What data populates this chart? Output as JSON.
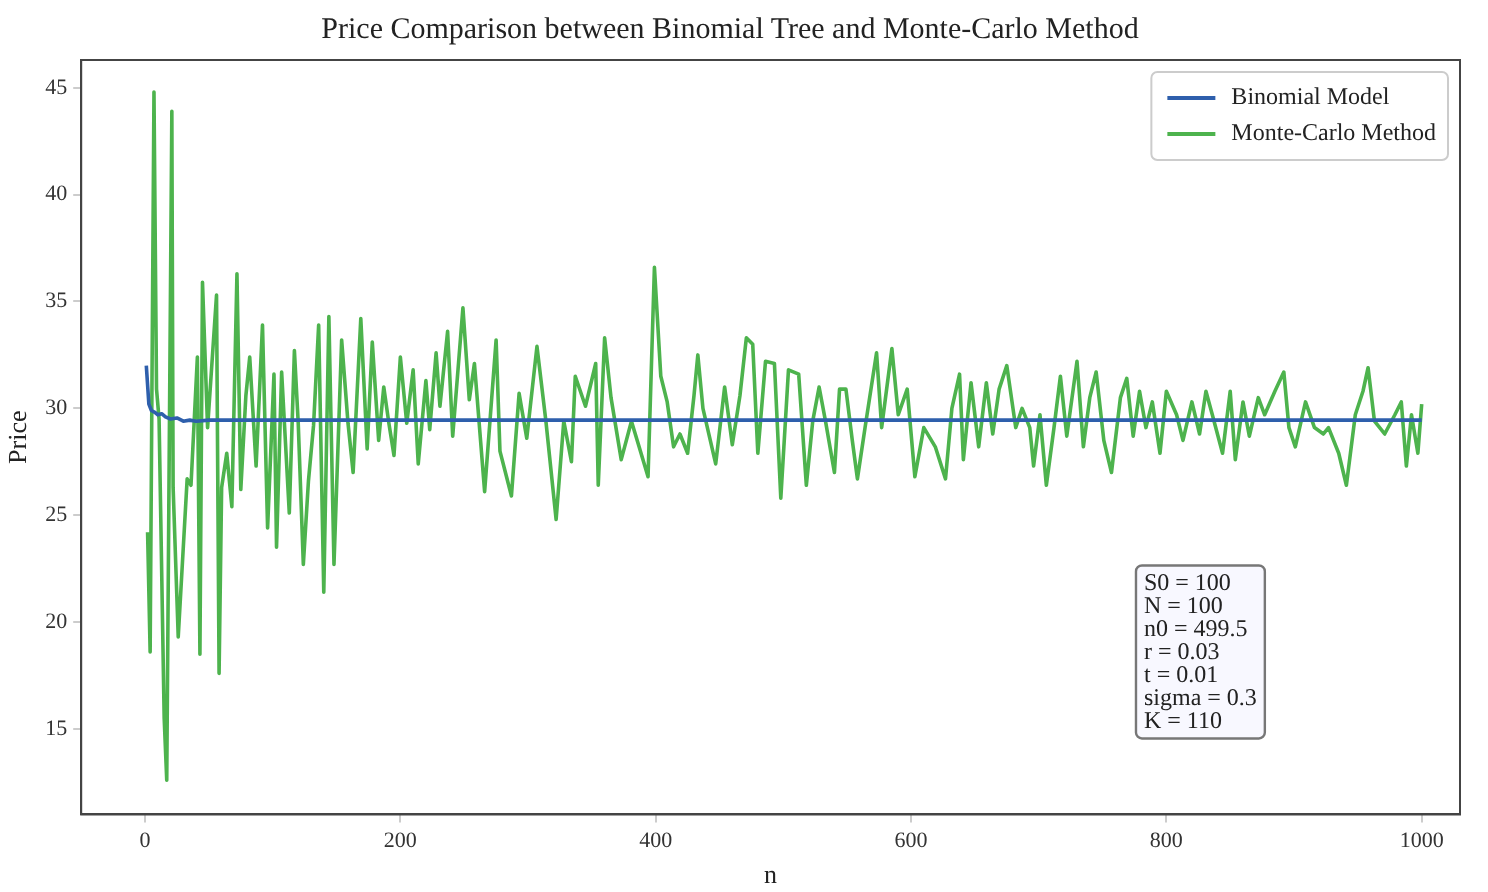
{
  "chart_data": {
    "type": "line",
    "title": "Price Comparison between Binomial Tree and Monte-Carlo Method",
    "xlabel": "n",
    "ylabel": "Price",
    "xlim": [
      -50,
      1030
    ],
    "xticks": [
      0,
      200,
      400,
      600,
      800,
      1000
    ],
    "ylim": [
      11,
      46.3
    ],
    "yticks": [
      15,
      20,
      25,
      30,
      35,
      40,
      45
    ],
    "grid": false,
    "legend": "top right",
    "marker": "none",
    "line_style": "solid",
    "annotations": [
      "S0 = 100\nN = 100\nn0 = 499.5\nr = 0.03\nt = 0.01\nsigma = 0.3\nK = 110"
    ],
    "series": [
      {
        "name": "Binomial Model",
        "color": "#2e5fac",
        "x": [
          1,
          3,
          5,
          8,
          10,
          13,
          16,
          20,
          25,
          30,
          35,
          40,
          50,
          100,
          1000
        ],
        "values": [
          32,
          30.2,
          29.9,
          29.8,
          29.7,
          29.75,
          29.6,
          29.5,
          29.55,
          29.4,
          29.45,
          29.4,
          29.45,
          29.45,
          29.45
        ]
      },
      {
        "name": "Monte-Carlo Method",
        "color": "#4db34d",
        "x": [
          2,
          4,
          7,
          9,
          11,
          15,
          17,
          21,
          22,
          26,
          33,
          36,
          41,
          43,
          45,
          49,
          56,
          58,
          60,
          64,
          68,
          72,
          75,
          79,
          82,
          87,
          92,
          96,
          101,
          103,
          107,
          113,
          117,
          120,
          124,
          128,
          132,
          136,
          140,
          144,
          148,
          154,
          159,
          163,
          169,
          174,
          178,
          183,
          187,
          191,
          195,
          200,
          205,
          210,
          214,
          220,
          223,
          228,
          231,
          237,
          241,
          249,
          254,
          258,
          266,
          275,
          278,
          287,
          293,
          299,
          307,
          314,
          322,
          328,
          334,
          337,
          345,
          353,
          355,
          360,
          365,
          373,
          381,
          387,
          394,
          399,
          404,
          409,
          414,
          419,
          425,
          430,
          433,
          437,
          447,
          454,
          460,
          466,
          471,
          476,
          480,
          486,
          493,
          498,
          504,
          512,
          518,
          523,
          528,
          533,
          540,
          544,
          549,
          554,
          558,
          564,
          573,
          577,
          585,
          590,
          597,
          603,
          610,
          619,
          627,
          632,
          638,
          641,
          647,
          653,
          659,
          664,
          669,
          675,
          682,
          687,
          693,
          696,
          701,
          706,
          712,
          717,
          722,
          730,
          735,
          740,
          745,
          751,
          757,
          764,
          769,
          774,
          779,
          784,
          789,
          795,
          800,
          808,
          813,
          820,
          826,
          831,
          836,
          844,
          850,
          854,
          860,
          865,
          872,
          877,
          885,
          892,
          896,
          901,
          909,
          916,
          923,
          927,
          935,
          941,
          948,
          954,
          958,
          963,
          971,
          979,
          984,
          988,
          992,
          997,
          1000
        ],
        "values": [
          24.2,
          18.6,
          44.8,
          30.9,
          29.5,
          15.5,
          12.6,
          43.9,
          26.3,
          19.3,
          26.7,
          26.4,
          32.4,
          18.5,
          35.9,
          29.1,
          35.3,
          17.6,
          26.3,
          27.9,
          25.4,
          36.3,
          26.2,
          30.6,
          32.4,
          27.3,
          33.9,
          24.4,
          31.6,
          23.5,
          31.7,
          25.1,
          32.7,
          29.3,
          22.7,
          26.6,
          29.2,
          33.9,
          21.4,
          34.3,
          22.7,
          33.2,
          29.3,
          27,
          34.2,
          28.1,
          33.1,
          28.5,
          31,
          29.3,
          27.8,
          32.4,
          29.3,
          31.8,
          27.4,
          31.3,
          29,
          32.6,
          30.1,
          33.6,
          28.7,
          34.7,
          30.4,
          32.1,
          26.1,
          33.2,
          28,
          25.9,
          30.7,
          28.6,
          32.9,
          29.4,
          24.8,
          29.4,
          27.5,
          31.5,
          30.1,
          32.1,
          26.4,
          33.3,
          30.5,
          27.6,
          29.4,
          28.2,
          26.8,
          36.6,
          31.5,
          30.3,
          28.2,
          28.8,
          27.9,
          30.6,
          32.5,
          30,
          27.4,
          31,
          28.3,
          30.6,
          33.3,
          33,
          27.9,
          32.2,
          32.1,
          25.8,
          31.8,
          31.6,
          26.4,
          29.4,
          31,
          29.4,
          27,
          30.9,
          30.9,
          28.5,
          26.7,
          29.1,
          32.6,
          29.1,
          32.8,
          29.7,
          30.9,
          26.8,
          29.1,
          28.2,
          26.7,
          30,
          31.6,
          27.6,
          31.2,
          28.2,
          31.2,
          28.8,
          30.9,
          32,
          29.1,
          30,
          29.1,
          27.3,
          29.7,
          26.4,
          29.1,
          31.5,
          28.7,
          32.2,
          28.2,
          30.5,
          31.7,
          28.5,
          27,
          30.5,
          31.4,
          28.7,
          30.8,
          29.1,
          30.3,
          27.9,
          30.8,
          29.7,
          28.5,
          30.3,
          28.8,
          30.8,
          29.7,
          27.9,
          30.8,
          27.6,
          30.3,
          28.7,
          30.5,
          29.7,
          30.8,
          31.7,
          29.1,
          28.2,
          30.3,
          29.1,
          28.8,
          29.1,
          27.9,
          26.4,
          29.7,
          30.8,
          31.9,
          29.4,
          28.8,
          29.7,
          30.3,
          27.3,
          29.7,
          27.9,
          30.2
        ]
      }
    ]
  }
}
